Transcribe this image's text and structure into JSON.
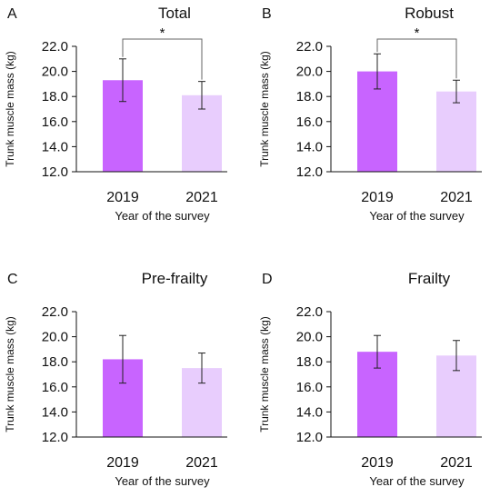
{
  "colors": {
    "bar_2019": "#c864ff",
    "bar_2021": "#e8cdfd",
    "error_bar": "#222222",
    "axis": "#111111"
  },
  "chart_data": [
    {
      "panel": "A",
      "type": "bar",
      "title": "Total",
      "xlabel": "Year of the survey",
      "ylabel": "Trunk muscle mass (kg)",
      "categories": [
        "2019",
        "2021"
      ],
      "values": [
        19.3,
        18.1
      ],
      "error": [
        1.7,
        1.1
      ],
      "ylim": [
        12.0,
        22.0
      ],
      "yticks": [
        "12.0",
        "14.0",
        "16.0",
        "18.0",
        "20.0",
        "22.0"
      ],
      "significance": "*"
    },
    {
      "panel": "B",
      "type": "bar",
      "title": "Robust",
      "xlabel": "Year of the survey",
      "ylabel": "Trunk muscle mass (kg)",
      "categories": [
        "2019",
        "2021"
      ],
      "values": [
        20.0,
        18.4
      ],
      "error": [
        1.4,
        0.9
      ],
      "ylim": [
        12.0,
        22.0
      ],
      "yticks": [
        "12.0",
        "14.0",
        "16.0",
        "18.0",
        "20.0",
        "22.0"
      ],
      "significance": "*"
    },
    {
      "panel": "C",
      "type": "bar",
      "title": "Pre-frailty",
      "xlabel": "Year of the survey",
      "ylabel": "Trunk muscle mass (kg)",
      "categories": [
        "2019",
        "2021"
      ],
      "values": [
        18.2,
        17.5
      ],
      "error": [
        1.9,
        1.2
      ],
      "ylim": [
        12.0,
        22.0
      ],
      "yticks": [
        "12.0",
        "14.0",
        "16.0",
        "18.0",
        "20.0",
        "22.0"
      ],
      "significance": ""
    },
    {
      "panel": "D",
      "type": "bar",
      "title": "Frailty",
      "xlabel": "Year of the survey",
      "ylabel": "Trunk muscle mass (kg)",
      "categories": [
        "2019",
        "2021"
      ],
      "values": [
        18.8,
        18.5
      ],
      "error": [
        1.3,
        1.2
      ],
      "ylim": [
        12.0,
        22.0
      ],
      "yticks": [
        "12.0",
        "14.0",
        "16.0",
        "18.0",
        "20.0",
        "22.0"
      ],
      "significance": ""
    }
  ]
}
